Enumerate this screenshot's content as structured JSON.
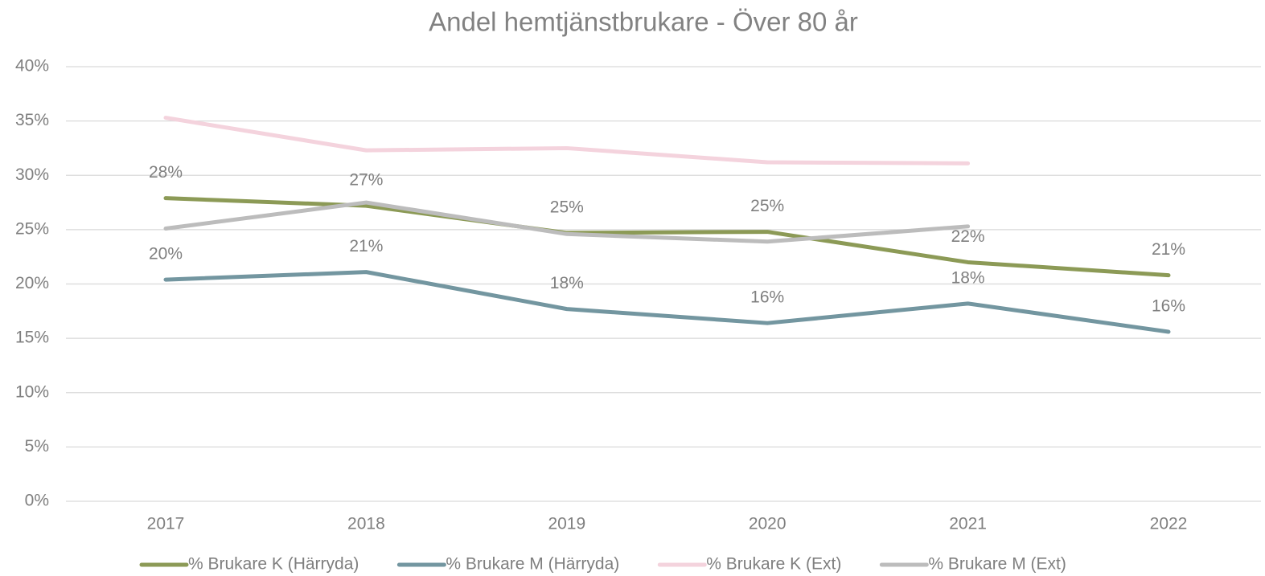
{
  "chart_data": {
    "type": "line",
    "title": "Andel hemtjänstbrukare - Över 80 år",
    "categories": [
      "2017",
      "2018",
      "2019",
      "2020",
      "2021",
      "2022"
    ],
    "series": [
      {
        "name": "% Brukare K (Härryda)",
        "color": "#8c9a56",
        "values": [
          27.9,
          27.2,
          24.7,
          24.8,
          22.0,
          20.8
        ],
        "value_labels": [
          "28%",
          "27%",
          "25%",
          "25%",
          "22%",
          "21%"
        ]
      },
      {
        "name": "% Brukare M (Härryda)",
        "color": "#7396a0",
        "values": [
          20.4,
          21.1,
          17.7,
          16.4,
          18.2,
          15.6
        ],
        "value_labels": [
          "20%",
          "21%",
          "18%",
          "16%",
          "18%",
          "16%"
        ]
      },
      {
        "name": "% Brukare K (Ext)",
        "color": "#f4d3dd",
        "values": [
          35.3,
          32.3,
          32.5,
          31.2,
          31.1,
          null
        ]
      },
      {
        "name": "% Brukare M (Ext)",
        "color": "#bcbcbc",
        "values": [
          25.1,
          27.5,
          24.6,
          23.9,
          25.3,
          null
        ]
      }
    ],
    "ylim": [
      0,
      40
    ],
    "yticks": [
      {
        "value": 0,
        "label": "0%"
      },
      {
        "value": 5,
        "label": "5%"
      },
      {
        "value": 10,
        "label": "10%"
      },
      {
        "value": 15,
        "label": "15%"
      },
      {
        "value": 20,
        "label": "20%"
      },
      {
        "value": 25,
        "label": "25%"
      },
      {
        "value": 30,
        "label": "30%"
      },
      {
        "value": 35,
        "label": "35%"
      },
      {
        "value": 40,
        "label": "40%"
      }
    ],
    "grid": true,
    "legend": "bottom"
  }
}
